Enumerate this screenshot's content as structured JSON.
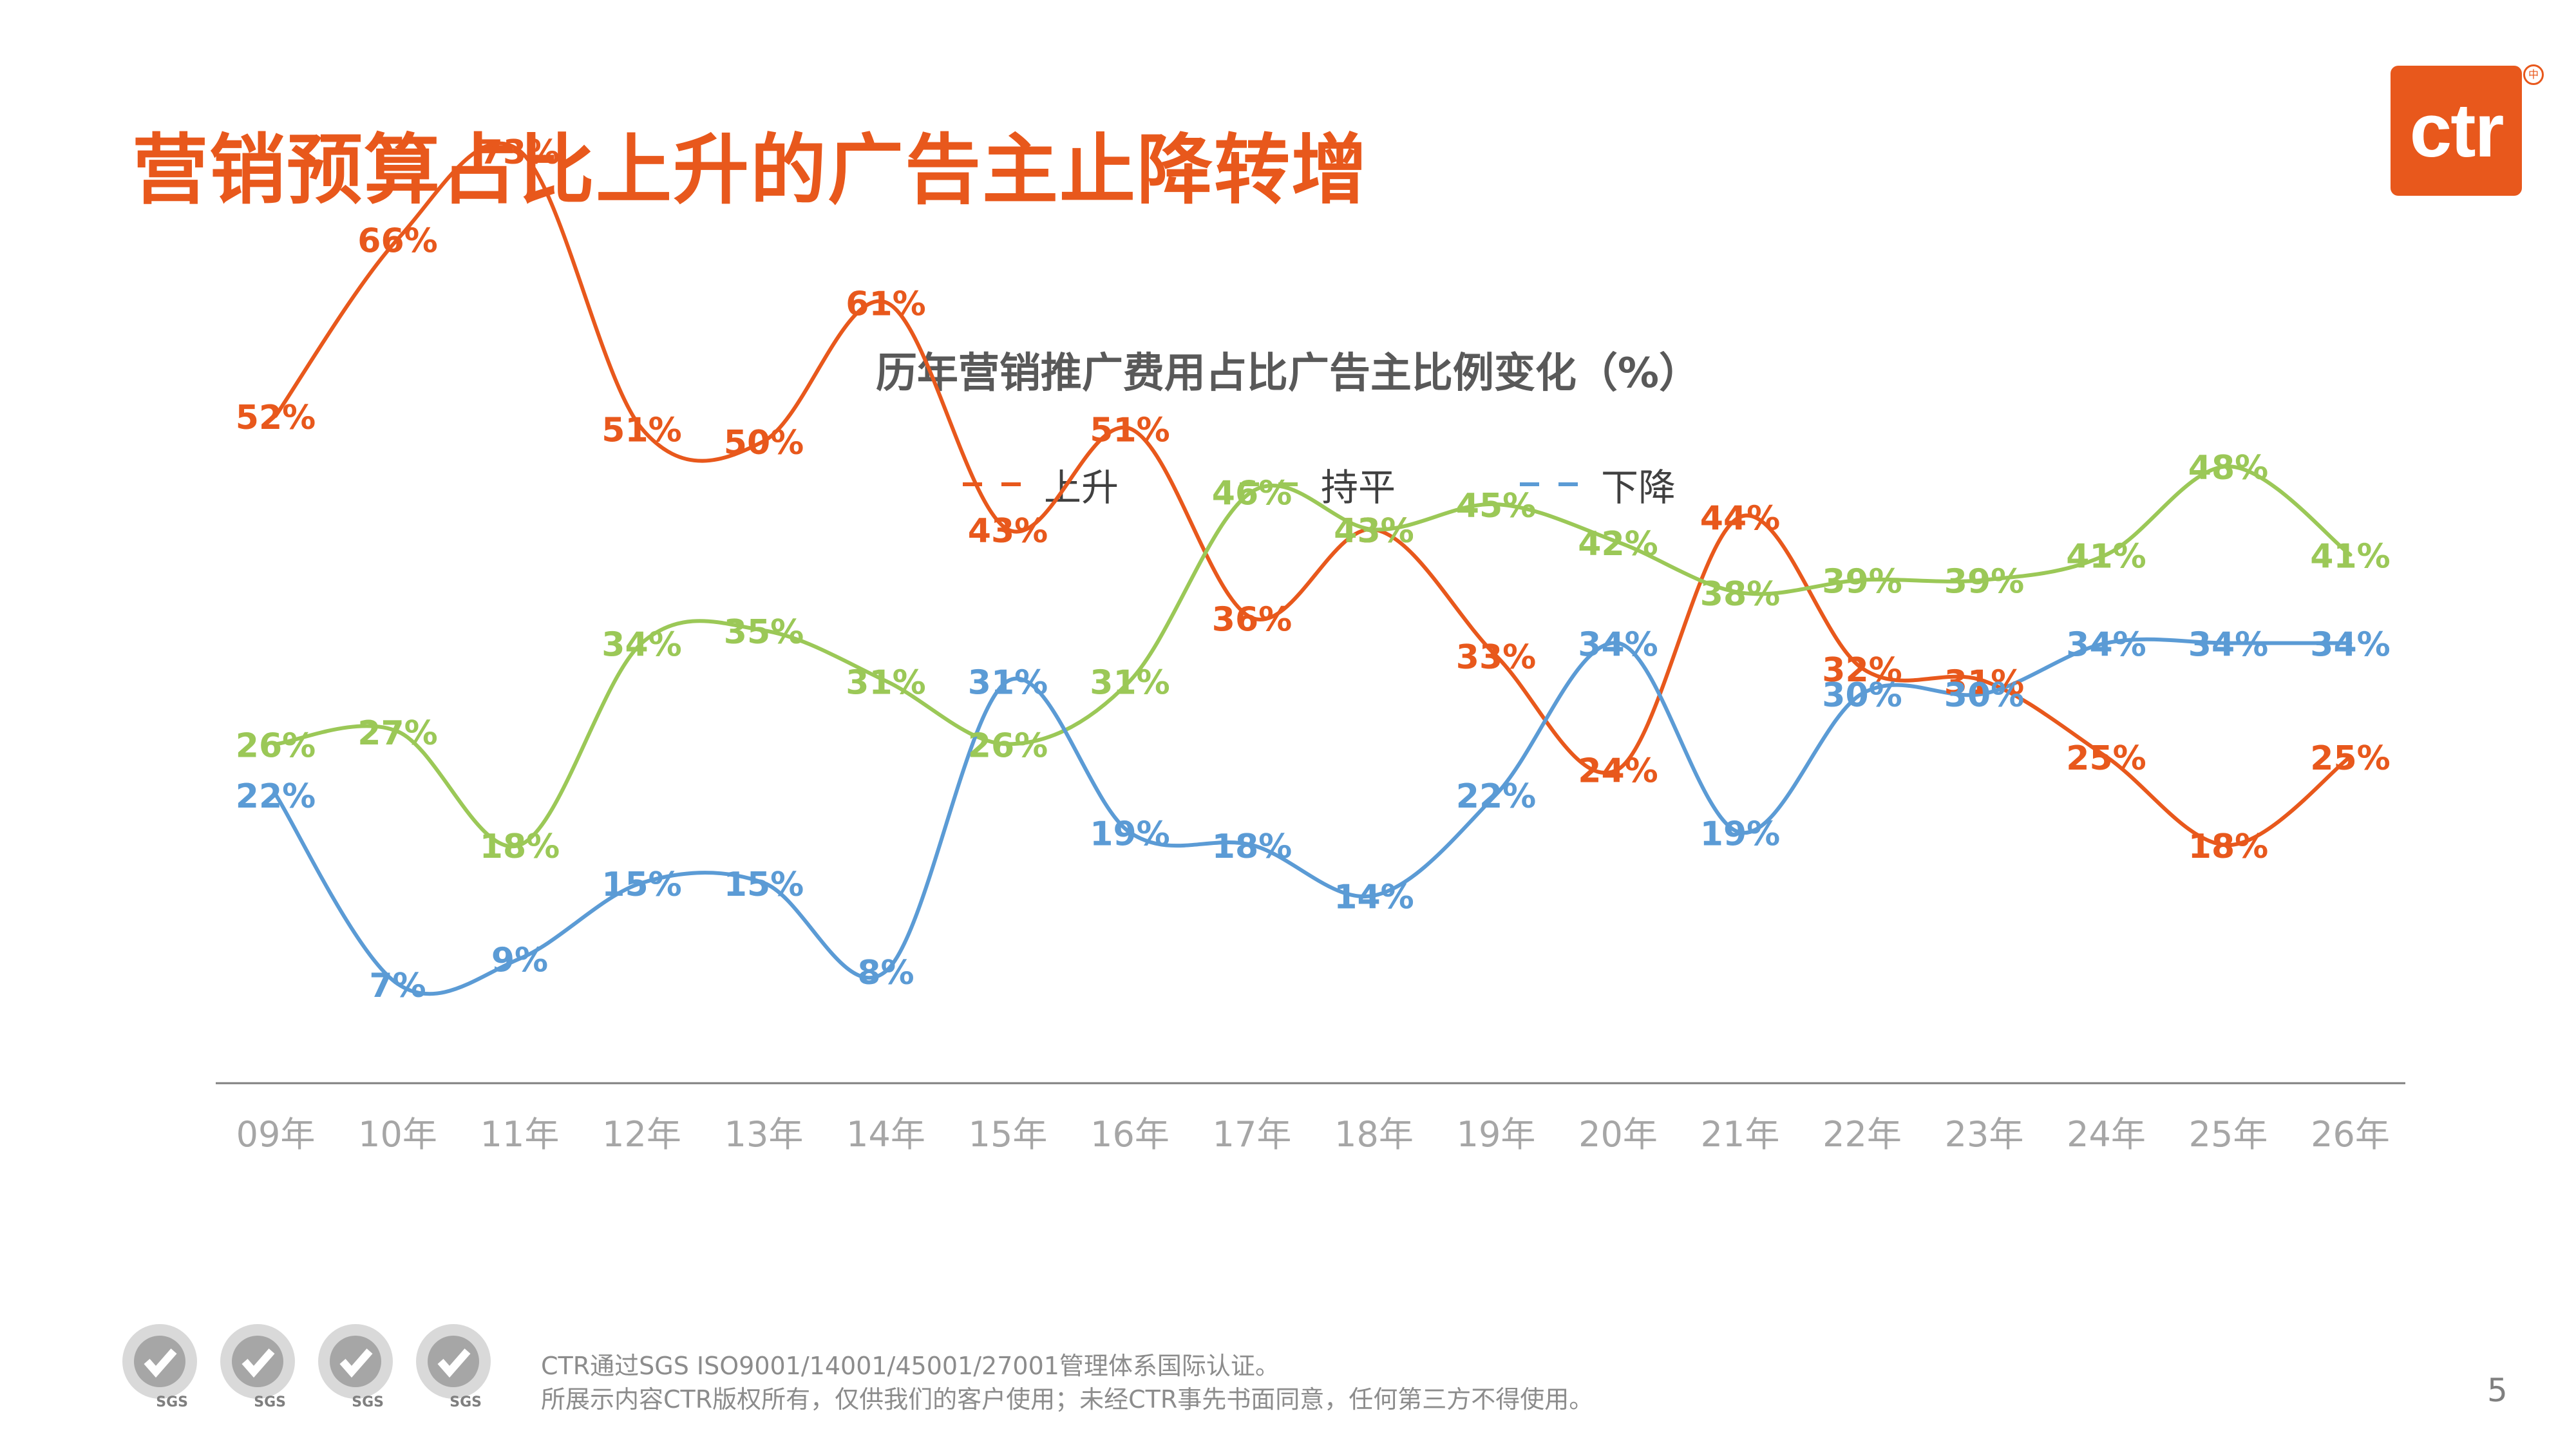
{
  "page": {
    "title": "营销预算占比上升的广告主止降转增",
    "logo_text": "ctr",
    "logo_mark": "中",
    "footer_line1": "CTR通过SGS ISO9001/14001/45001/27001管理体系国际认证。",
    "footer_line2": "所展示内容CTR版权所有，仅供我们的客户使用；未经CTR事先书面同意，任何第三方不得使用。",
    "page_number": "5",
    "cert_label": "SGS",
    "colors": {
      "brand": "#e8581c"
    }
  },
  "chart_data": {
    "type": "line",
    "title": "历年营销推广费用占比广告主比例变化（%）",
    "categories": [
      "09年",
      "10年",
      "11年",
      "12年",
      "13年",
      "14年",
      "15年",
      "16年",
      "17年",
      "18年",
      "19年",
      "20年",
      "21年",
      "22年",
      "23年",
      "24年",
      "25年",
      "26年"
    ],
    "series": [
      {
        "name": "上升",
        "color": "#e8581c",
        "values": [
          52,
          66,
          73,
          51,
          50,
          61,
          43,
          51,
          36,
          43,
          33,
          24,
          44,
          32,
          31,
          25,
          18,
          25
        ]
      },
      {
        "name": "持平",
        "color": "#9bc857",
        "values": [
          26,
          27,
          18,
          34,
          35,
          31,
          26,
          31,
          46,
          43,
          45,
          42,
          38,
          39,
          39,
          41,
          48,
          41
        ]
      },
      {
        "name": "下降",
        "color": "#5b9bd5",
        "values": [
          22,
          7,
          9,
          15,
          15,
          8,
          31,
          19,
          18,
          14,
          22,
          34,
          19,
          30,
          30,
          34,
          34,
          34
        ]
      }
    ],
    "value_suffix": "%",
    "legend_position": "top-center",
    "grid": false
  }
}
